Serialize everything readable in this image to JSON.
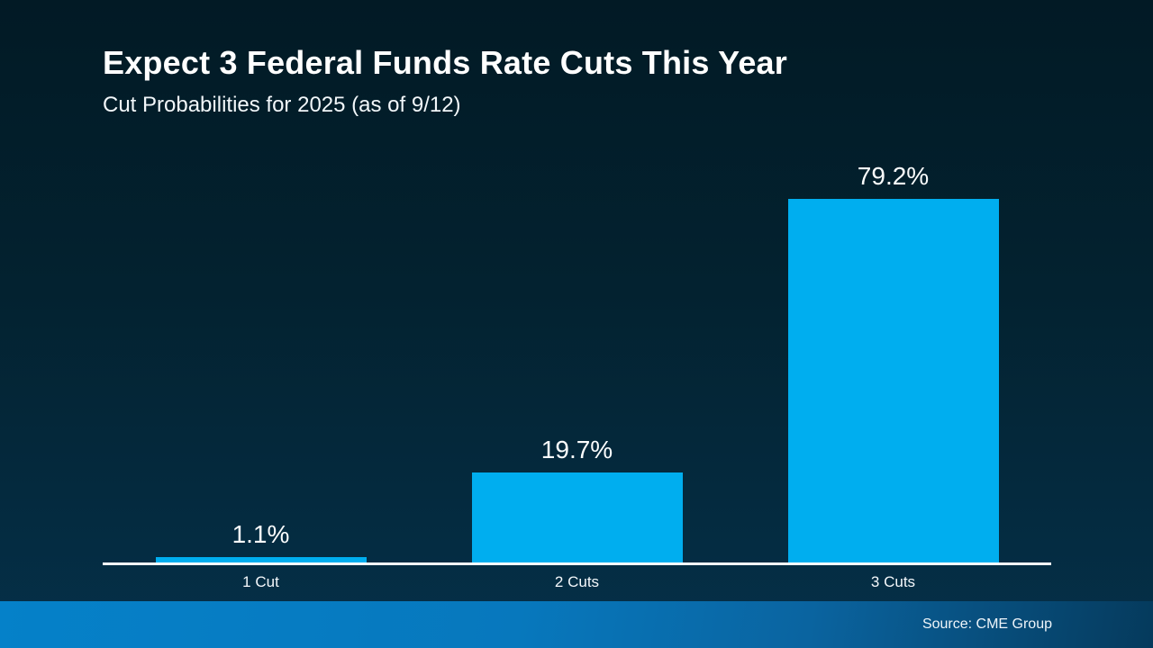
{
  "slide": {
    "title": "Expect 3 Federal Funds Rate Cuts This Year",
    "subtitle": "Cut Probabilities for 2025 (as of 9/12)",
    "source": "Source: CME Group"
  },
  "chart_data": {
    "type": "bar",
    "title": "Expect 3 Federal Funds Rate Cuts This Year",
    "subtitle": "Cut Probabilities for 2025 (as of 9/12)",
    "categories": [
      "1 Cut",
      "2 Cuts",
      "3 Cuts"
    ],
    "values": [
      1.1,
      19.7,
      79.2
    ],
    "value_labels": [
      "1.1%",
      "19.7%",
      "79.2%"
    ],
    "unit": "%",
    "xlabel": "",
    "ylabel": "",
    "ylim": [
      0,
      91
    ],
    "grid": false,
    "legend": false,
    "bar_color": "#00aeef",
    "axis_line_color": "#ffffff",
    "value_label_position": "above-bar",
    "source": "Source: CME Group"
  },
  "colors": {
    "background_top": "#021a25",
    "background_bottom": "#053049",
    "footer_gradient_left": "#0581c9",
    "footer_gradient_right": "#053a5c",
    "bar": "#00aeef",
    "text": "#ffffff"
  }
}
